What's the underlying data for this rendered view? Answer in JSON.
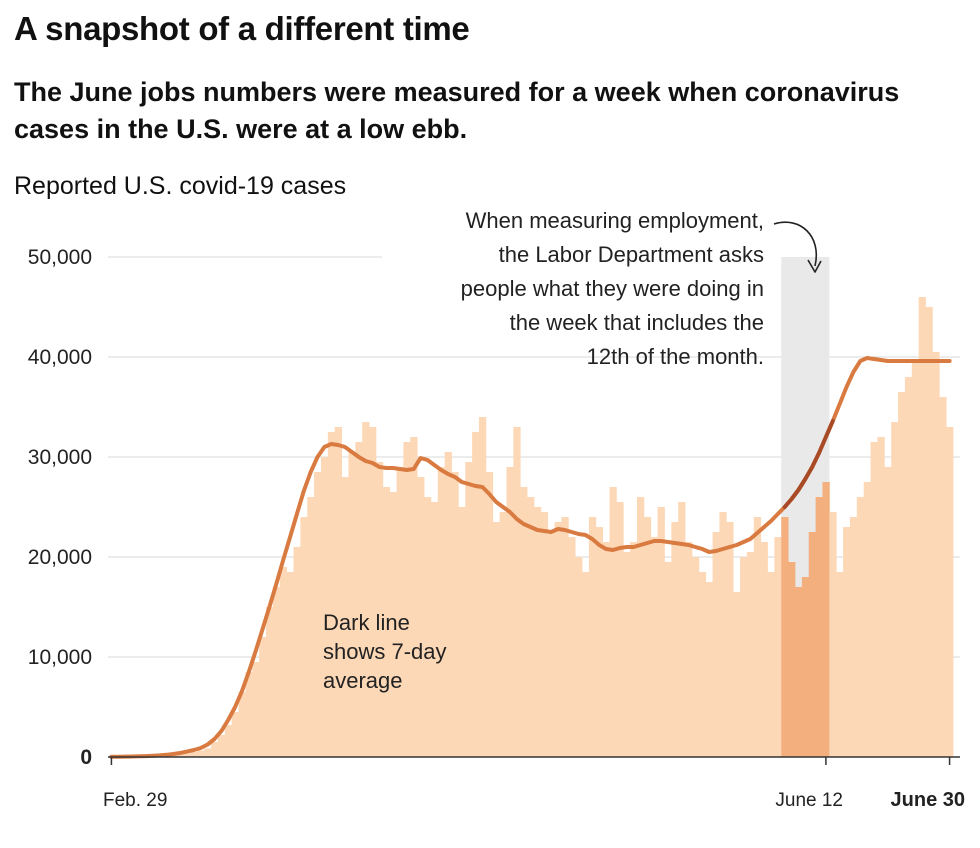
{
  "chart_data": {
    "type": "bar",
    "title": "A snapshot of a different time",
    "subtitle": "The June jobs numbers were measured for a week when coronavirus cases in the U.S. were at a low ebb.",
    "ylabel": "Reported U.S. covid-19 cases",
    "xlabel": "",
    "ylim": [
      0,
      50000
    ],
    "grid": true,
    "yticks": [
      {
        "value": 0,
        "label": "0"
      },
      {
        "value": 10000,
        "label": "10,000"
      },
      {
        "value": 20000,
        "label": "20,000"
      },
      {
        "value": 30000,
        "label": "30,000"
      },
      {
        "value": 40000,
        "label": "40,000"
      },
      {
        "value": 50000,
        "label": "50,000"
      }
    ],
    "xticks": [
      {
        "day": 0,
        "label": "Feb. 29",
        "bold": false
      },
      {
        "day": 104,
        "label": "June 12",
        "bold": false
      },
      {
        "day": 122,
        "label": "June 30",
        "bold": true
      }
    ],
    "start_date": "Feb. 29",
    "highlight": {
      "start_day": 98,
      "end_day": 104
    },
    "series": [
      {
        "name": "Daily cases",
        "values": [
          1,
          5,
          10,
          20,
          30,
          40,
          55,
          70,
          110,
          150,
          260,
          350,
          500,
          650,
          850,
          1500,
          2200,
          3200,
          4500,
          6500,
          8500,
          9500,
          12000,
          15000,
          17000,
          19000,
          18500,
          21000,
          24000,
          26000,
          28500,
          30000,
          32500,
          33000,
          28000,
          30500,
          31500,
          33500,
          33000,
          29500,
          27000,
          26500,
          29000,
          31500,
          32000,
          28000,
          26000,
          25500,
          29000,
          30500,
          28500,
          25000,
          29500,
          32500,
          34000,
          28500,
          23500,
          24500,
          29000,
          33000,
          27000,
          26000,
          25000,
          24500,
          22500,
          23500,
          24000,
          22000,
          20000,
          18500,
          24000,
          23000,
          21500,
          27000,
          25500,
          20500,
          21500,
          26000,
          24000,
          22000,
          25000,
          19500,
          23500,
          25500,
          21500,
          20000,
          18500,
          17500,
          22500,
          24500,
          23500,
          16500,
          20000,
          20500,
          24000,
          21500,
          18500,
          22000,
          24000,
          19500,
          17000,
          18000,
          22500,
          26000,
          27500,
          24500,
          18500,
          23000,
          24000,
          26000,
          27500,
          31500,
          32000,
          29000,
          33500,
          36500,
          38000,
          39500,
          46000,
          45000,
          40500,
          36000,
          33000
        ]
      },
      {
        "name": "7-day average",
        "values": [
          20,
          30,
          40,
          55,
          70,
          90,
          120,
          160,
          220,
          300,
          400,
          540,
          700,
          900,
          1250,
          1800,
          2600,
          3700,
          5000,
          6600,
          8500,
          10600,
          12800,
          15000,
          17300,
          19700,
          22000,
          24300,
          26600,
          28500,
          30000,
          31000,
          31300,
          31200,
          31000,
          30500,
          30000,
          29600,
          29400,
          29000,
          28900,
          28900,
          28800,
          28700,
          28800,
          29900,
          29700,
          29200,
          28700,
          28300,
          28000,
          27500,
          27300,
          27100,
          27000,
          26300,
          25500,
          25000,
          24500,
          23800,
          23300,
          23000,
          22700,
          22600,
          22500,
          22800,
          22700,
          22500,
          22300,
          22200,
          21800,
          21200,
          20800,
          20700,
          20900,
          21000,
          21000,
          21200,
          21400,
          21600,
          21600,
          21500,
          21400,
          21300,
          21200,
          21000,
          20800,
          20500,
          20600,
          20800,
          21000,
          21200,
          21500,
          21800,
          22400,
          23000,
          23600,
          24300,
          25000,
          25800,
          26700,
          27800,
          29000,
          30400,
          32000,
          33600,
          35300,
          37000,
          38500,
          39600,
          39900,
          39800,
          39700,
          39600,
          39600,
          39600,
          39600,
          39600,
          39600,
          39600,
          39600,
          39600,
          39600
        ]
      }
    ],
    "annotations": {
      "labor_dept": [
        "When measuring employment,",
        "the Labor Department asks",
        "people what they were doing in",
        "the week that includes the",
        "12th of the month."
      ],
      "avg_line": [
        "Dark line",
        "shows 7-day",
        "average"
      ]
    },
    "colors": {
      "bar": "#fdd8b7",
      "bar_highlight": "#f3b07e",
      "line": "#d97a40",
      "line_highlight": "#a84a26",
      "highlight_band": "#e9e9ea",
      "grid": "#d9d9d9"
    }
  }
}
